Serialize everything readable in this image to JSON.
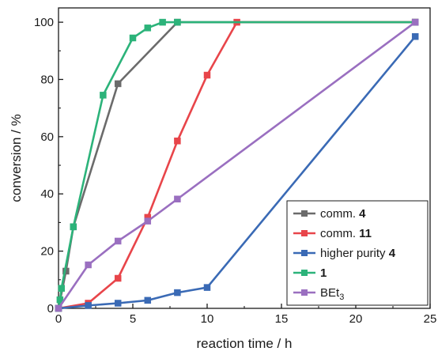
{
  "chart_data": {
    "type": "line",
    "xlabel": "reaction time / h",
    "ylabel": "conversion / %",
    "xlim": [
      0,
      25
    ],
    "ylim": [
      0,
      105
    ],
    "x_ticks": [
      0,
      5,
      10,
      15,
      20,
      25
    ],
    "y_ticks": [
      0,
      20,
      40,
      60,
      80,
      100
    ],
    "grid": false,
    "legend_position": "bottom-right",
    "series": [
      {
        "name": "comm. ",
        "name_bold": "4",
        "color": "#6b6b6b",
        "x": [
          0,
          0.5,
          1,
          4,
          8,
          24
        ],
        "y": [
          0,
          13,
          28.5,
          78.5,
          100,
          100
        ]
      },
      {
        "name": "comm. ",
        "name_bold": "11",
        "color": "#e8454a",
        "x": [
          0,
          2,
          4,
          6,
          8,
          10,
          12,
          24
        ],
        "y": [
          0,
          1.8,
          10.5,
          31.8,
          58.5,
          81.5,
          100,
          100
        ]
      },
      {
        "name": "higher purity ",
        "name_bold": "4",
        "color": "#3a6ab5",
        "x": [
          0,
          2,
          4,
          6,
          8,
          10,
          24
        ],
        "y": [
          0,
          1,
          1.8,
          2.8,
          5.5,
          7.3,
          95
        ]
      },
      {
        "name": "",
        "name_bold": "1",
        "color": "#2cb37a",
        "x": [
          0,
          0.1,
          0.2,
          1,
          3,
          5,
          6,
          7,
          8,
          24
        ],
        "y": [
          0,
          3,
          7,
          28.5,
          74.5,
          94.5,
          98,
          100,
          100,
          100
        ]
      },
      {
        "name": "BEt",
        "name_sub": "3",
        "color": "#9a6fc0",
        "x": [
          0,
          2,
          4,
          6,
          8,
          24
        ],
        "y": [
          0,
          15.2,
          23.5,
          30.5,
          38.2,
          100
        ]
      }
    ]
  }
}
